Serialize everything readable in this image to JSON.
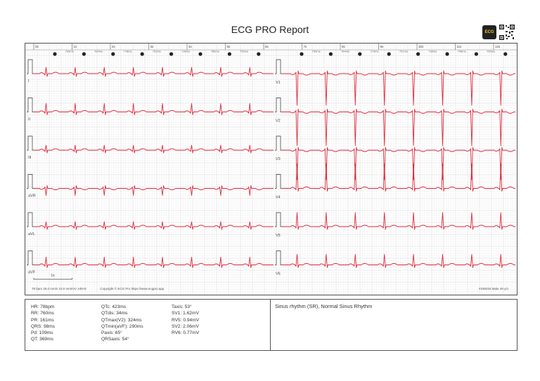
{
  "report": {
    "title": "ECG PRO Report",
    "logo_text": "ECG"
  },
  "colors": {
    "trace": "#e02a3c",
    "grid_minor": "#eeeeee",
    "grid_major": "#d8d8d8",
    "border": "#555555"
  },
  "timeline": {
    "seconds_labels": [
      "0s",
      "1s",
      "2s",
      "3s",
      "4s",
      "5s",
      "6s",
      "7s",
      "8s",
      "9s",
      "10s",
      "11s",
      "12s"
    ],
    "rr_left": [
      "753ms",
      "764ms",
      "778ms",
      "753ms",
      "739ms",
      "780ms",
      "759ms"
    ],
    "rr_right": [
      "753ms",
      "764ms",
      "770ms",
      "751ms",
      "739ms",
      "748ms",
      "755ms"
    ],
    "beats_left": 8,
    "beats_right": 8
  },
  "leads": {
    "left": [
      "I",
      "II",
      "III",
      "aVR",
      "aVL",
      "aVF"
    ],
    "right": [
      "V1",
      "V2",
      "V3",
      "V4",
      "V5",
      "V6"
    ]
  },
  "scale_label": "1s",
  "footer": {
    "settings": "78 bpm   25.0 mm/s  10.0 mm/mV   44kHz",
    "copyright": "Copyright © ECG Pro https://www.ecgpro.app",
    "right": "#190026   Male   49 y/o"
  },
  "measurements": {
    "col1": [
      "HR: 78bpm",
      "RR: 760ms",
      "PR: 161ms",
      "QRS: 98ms",
      "Pd: 109ms",
      "QT: 369ms"
    ],
    "col2": [
      "QTc: 423ms",
      "QTdis: 34ms",
      "QTmax(V2): 324ms",
      "QTmin(aVF): 290ms",
      "Paxis: 65°",
      "QRSaxis: 54°"
    ],
    "col3": [
      "Taxis: 53°",
      "SV1: 1.62mV",
      "RV5: 0.94mV",
      "SV2: 2.06mV",
      "RV6: 0.77mV"
    ]
  },
  "interpretation": "Sinus rhythm (SR), Normal Sinus Rhythm"
}
